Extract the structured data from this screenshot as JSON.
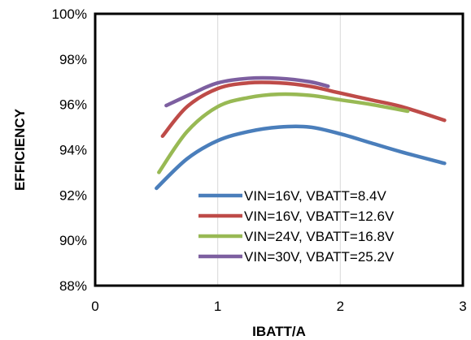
{
  "chart_data": {
    "type": "line",
    "xlabel": "IBATT/A",
    "ylabel": "EFFICIENCY",
    "xlim": [
      0,
      3
    ],
    "ylim": [
      88,
      100
    ],
    "x_ticks": [
      "0",
      "1",
      "2",
      "3"
    ],
    "y_ticks": [
      "88%",
      "90%",
      "92%",
      "94%",
      "96%",
      "98%",
      "100%"
    ],
    "grid": "vertical",
    "legend_position": "bottom-right",
    "series": [
      {
        "name": "VIN=16V, VBATT=8.4V",
        "color": "#4a7ebb",
        "points": [
          [
            0.5,
            92.3
          ],
          [
            0.75,
            93.6
          ],
          [
            1.0,
            94.4
          ],
          [
            1.25,
            94.8
          ],
          [
            1.5,
            95.0
          ],
          [
            1.75,
            95.0
          ],
          [
            2.0,
            94.7
          ],
          [
            2.25,
            94.3
          ],
          [
            2.5,
            93.9
          ],
          [
            2.85,
            93.4
          ]
        ]
      },
      {
        "name": "VIN=16V, VBATT=12.6V",
        "color": "#be4b48",
        "points": [
          [
            0.55,
            94.6
          ],
          [
            0.75,
            95.9
          ],
          [
            1.0,
            96.7
          ],
          [
            1.25,
            96.95
          ],
          [
            1.5,
            96.95
          ],
          [
            1.75,
            96.8
          ],
          [
            2.0,
            96.5
          ],
          [
            2.25,
            96.2
          ],
          [
            2.5,
            95.9
          ],
          [
            2.85,
            95.3
          ]
        ]
      },
      {
        "name": "VIN=24V, VBATT=16.8V",
        "color": "#98b954",
        "points": [
          [
            0.52,
            93.0
          ],
          [
            0.75,
            94.8
          ],
          [
            1.0,
            95.9
          ],
          [
            1.25,
            96.3
          ],
          [
            1.5,
            96.45
          ],
          [
            1.75,
            96.4
          ],
          [
            2.0,
            96.2
          ],
          [
            2.25,
            96.0
          ],
          [
            2.55,
            95.7
          ]
        ]
      },
      {
        "name": "VIN=30V, VBATT=25.2V",
        "color": "#7d5fa0",
        "points": [
          [
            0.58,
            95.95
          ],
          [
            0.8,
            96.5
          ],
          [
            1.0,
            96.95
          ],
          [
            1.25,
            97.15
          ],
          [
            1.5,
            97.15
          ],
          [
            1.75,
            97.0
          ],
          [
            1.9,
            96.8
          ]
        ]
      }
    ]
  }
}
